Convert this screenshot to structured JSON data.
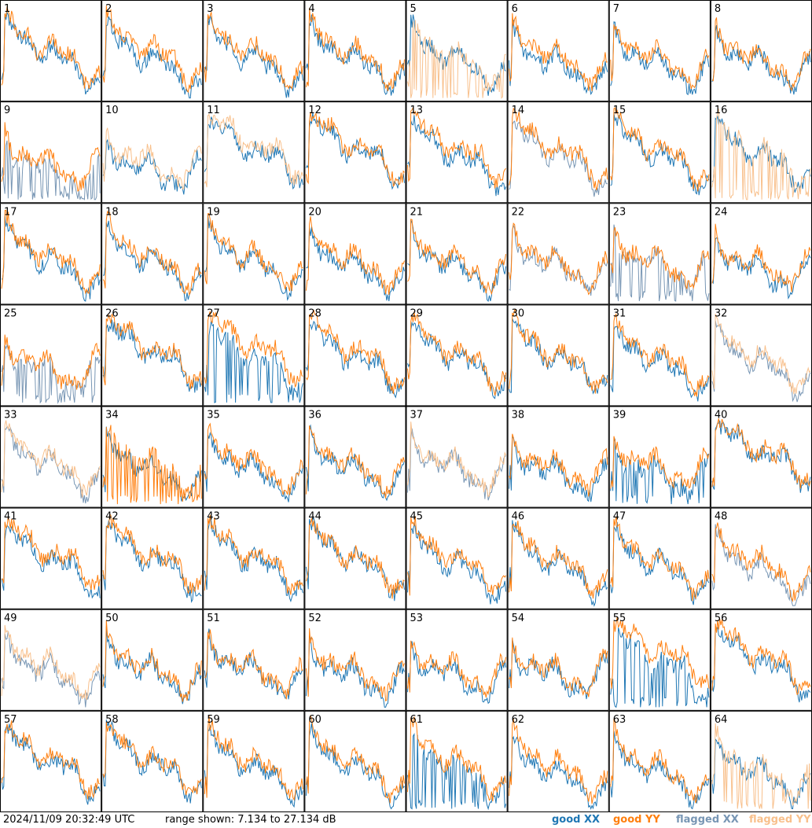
{
  "footer": {
    "timestamp": "2024/11/09 20:32:49 UTC",
    "range_text": "range shown: 7.134 to 27.134 dB"
  },
  "legend": [
    {
      "key": "good_xx",
      "prefix": "good",
      "pol": "XX",
      "color": "#1f77b4"
    },
    {
      "key": "good_yy",
      "prefix": "good",
      "pol": "YY",
      "color": "#ff7f0e"
    },
    {
      "key": "flagged_xx",
      "prefix": "flagged",
      "pol": "XX",
      "color": "#7896b4"
    },
    {
      "key": "flagged_yy",
      "prefix": "flagged",
      "pol": "YY",
      "color": "#f8c08c"
    }
  ],
  "chart_data": {
    "type": "line",
    "grid": "8x8 small multiples",
    "ylim": [
      7.134,
      27.134
    ],
    "yunit": "dB",
    "panels": [
      {
        "id": 1,
        "xx": "good",
        "yy": "good"
      },
      {
        "id": 2,
        "xx": "good",
        "yy": "good"
      },
      {
        "id": 3,
        "xx": "good",
        "yy": "good"
      },
      {
        "id": 4,
        "xx": "good",
        "yy": "good"
      },
      {
        "id": 5,
        "xx": "good",
        "yy": "flagged",
        "yy_dropout": true
      },
      {
        "id": 6,
        "xx": "good",
        "yy": "good"
      },
      {
        "id": 7,
        "xx": "good",
        "yy": "good"
      },
      {
        "id": 8,
        "xx": "good",
        "yy": "good"
      },
      {
        "id": 9,
        "xx": "flagged",
        "yy": "good",
        "xx_dropout": true
      },
      {
        "id": 10,
        "xx": "good",
        "yy": "flagged"
      },
      {
        "id": 11,
        "xx": "good",
        "yy": "flagged"
      },
      {
        "id": 12,
        "xx": "good",
        "yy": "good"
      },
      {
        "id": 13,
        "xx": "good",
        "yy": "good"
      },
      {
        "id": 14,
        "xx": "flagged",
        "yy": "good"
      },
      {
        "id": 15,
        "xx": "good",
        "yy": "good"
      },
      {
        "id": 16,
        "xx": "good",
        "yy": "flagged",
        "yy_dropout": true
      },
      {
        "id": 17,
        "xx": "good",
        "yy": "good"
      },
      {
        "id": 18,
        "xx": "good",
        "yy": "good"
      },
      {
        "id": 19,
        "xx": "good",
        "yy": "good"
      },
      {
        "id": 20,
        "xx": "good",
        "yy": "good"
      },
      {
        "id": 21,
        "xx": "good",
        "yy": "good"
      },
      {
        "id": 22,
        "xx": "flagged",
        "yy": "good"
      },
      {
        "id": 23,
        "xx": "flagged",
        "yy": "good",
        "xx_dropout": true
      },
      {
        "id": 24,
        "xx": "good",
        "yy": "good"
      },
      {
        "id": 25,
        "xx": "flagged",
        "yy": "good",
        "xx_dropout": true
      },
      {
        "id": 26,
        "xx": "good",
        "yy": "good"
      },
      {
        "id": 27,
        "xx": "good",
        "yy": "good",
        "xx_dropout": true
      },
      {
        "id": 28,
        "xx": "good",
        "yy": "good"
      },
      {
        "id": 29,
        "xx": "good",
        "yy": "good"
      },
      {
        "id": 30,
        "xx": "good",
        "yy": "good"
      },
      {
        "id": 31,
        "xx": "good",
        "yy": "good"
      },
      {
        "id": 32,
        "xx": "flagged",
        "yy": "flagged"
      },
      {
        "id": 33,
        "xx": "flagged",
        "yy": "flagged"
      },
      {
        "id": 34,
        "xx": "good",
        "yy": "good",
        "yy_dropout": true
      },
      {
        "id": 35,
        "xx": "good",
        "yy": "good"
      },
      {
        "id": 36,
        "xx": "good",
        "yy": "good"
      },
      {
        "id": 37,
        "xx": "flagged",
        "yy": "flagged"
      },
      {
        "id": 38,
        "xx": "good",
        "yy": "good"
      },
      {
        "id": 39,
        "xx": "good",
        "yy": "good",
        "xx_dropout": true
      },
      {
        "id": 40,
        "xx": "good",
        "yy": "good"
      },
      {
        "id": 41,
        "xx": "good",
        "yy": "good"
      },
      {
        "id": 42,
        "xx": "good",
        "yy": "good"
      },
      {
        "id": 43,
        "xx": "good",
        "yy": "good"
      },
      {
        "id": 44,
        "xx": "good",
        "yy": "good"
      },
      {
        "id": 45,
        "xx": "good",
        "yy": "good"
      },
      {
        "id": 46,
        "xx": "good",
        "yy": "good"
      },
      {
        "id": 47,
        "xx": "good",
        "yy": "good"
      },
      {
        "id": 48,
        "xx": "flagged",
        "yy": "good"
      },
      {
        "id": 49,
        "xx": "flagged",
        "yy": "flagged"
      },
      {
        "id": 50,
        "xx": "good",
        "yy": "good"
      },
      {
        "id": 51,
        "xx": "good",
        "yy": "good"
      },
      {
        "id": 52,
        "xx": "good",
        "yy": "good"
      },
      {
        "id": 53,
        "xx": "good",
        "yy": "good"
      },
      {
        "id": 54,
        "xx": "good",
        "yy": "good"
      },
      {
        "id": 55,
        "xx": "good",
        "yy": "good",
        "xx_dropout": true
      },
      {
        "id": 56,
        "xx": "good",
        "yy": "good"
      },
      {
        "id": 57,
        "xx": "good",
        "yy": "good"
      },
      {
        "id": 58,
        "xx": "good",
        "yy": "good"
      },
      {
        "id": 59,
        "xx": "good",
        "yy": "good"
      },
      {
        "id": 60,
        "xx": "good",
        "yy": "good"
      },
      {
        "id": 61,
        "xx": "good",
        "yy": "good",
        "xx_dropout": true
      },
      {
        "id": 62,
        "xx": "good",
        "yy": "good"
      },
      {
        "id": 63,
        "xx": "good",
        "yy": "good"
      },
      {
        "id": 64,
        "xx": "good",
        "yy": "flagged",
        "yy_dropout": true
      }
    ]
  }
}
